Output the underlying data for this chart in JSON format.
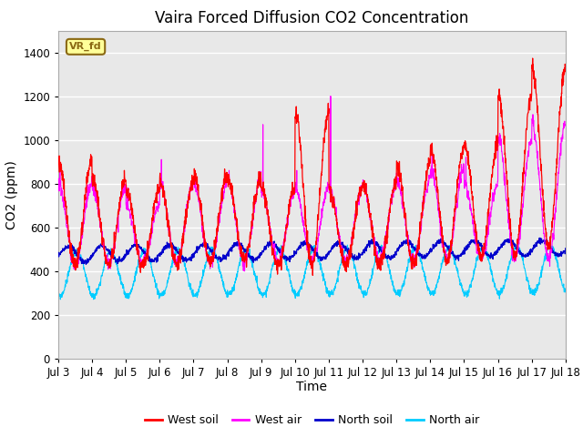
{
  "title": "Vaira Forced Diffusion CO2 Concentration",
  "xlabel": "Time",
  "ylabel": "CO2 (ppm)",
  "label_box": "VR_fd",
  "ylim": [
    0,
    1500
  ],
  "yticks": [
    0,
    200,
    400,
    600,
    800,
    1000,
    1200,
    1400
  ],
  "xtick_labels": [
    "Jul 3",
    "Jul 4",
    "Jul 5",
    "Jul 6",
    "Jul 7",
    "Jul 8",
    "Jul 9",
    "Jul 10",
    "Jul 11",
    "Jul 12",
    "Jul 13",
    "Jul 14",
    "Jul 15",
    "Jul 16",
    "Jul 17",
    "Jul 18"
  ],
  "n_days": 15,
  "colors": {
    "west_soil": "#ff0000",
    "west_air": "#ff00ff",
    "north_soil": "#0000cc",
    "north_air": "#00ccff"
  },
  "series_labels": [
    "West soil",
    "West air",
    "North soil",
    "North air"
  ],
  "bg_color": "#e8e8e8",
  "grid_color": "#ffffff",
  "title_fontsize": 12,
  "axis_fontsize": 10,
  "tick_fontsize": 8.5,
  "legend_fontsize": 9,
  "label_box_color": "#ffff99",
  "label_box_edge": "#8B6914",
  "label_box_text": "#8B6914"
}
